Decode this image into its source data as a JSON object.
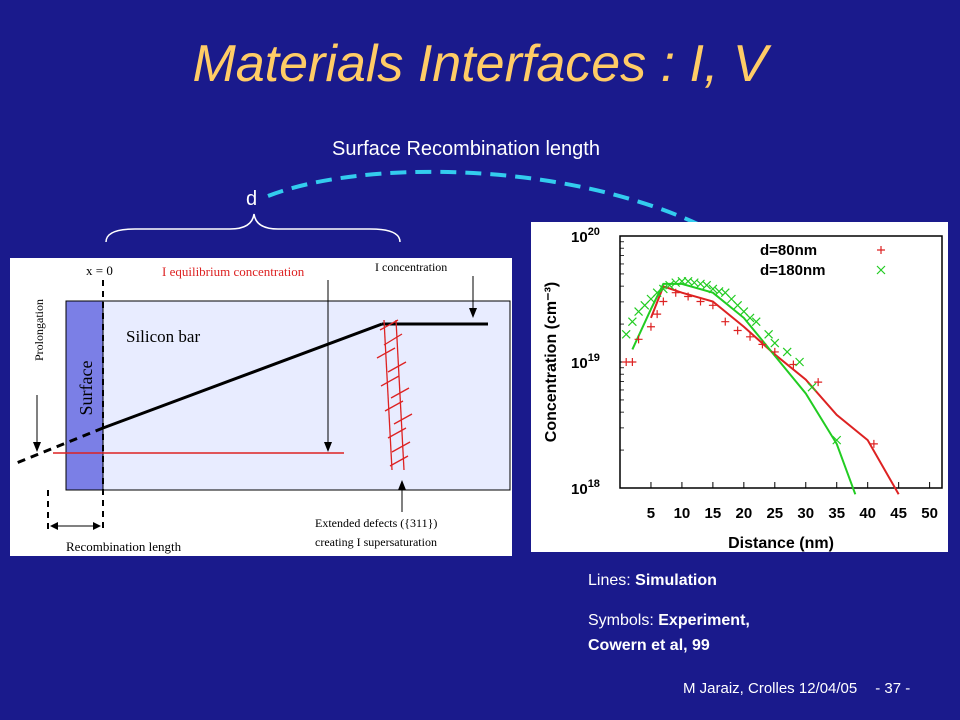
{
  "slide": {
    "title": "Materials Interfaces : I, V",
    "subtitle": "Surface Recombination length",
    "d_label": "d",
    "footer_author": "M Jaraiz, Crolles 12/04/05",
    "footer_page": "- 37 -"
  },
  "notes": {
    "lines_label": "Lines: ",
    "lines_value": "Simulation",
    "symbols_label": "Symbols: ",
    "symbols_value": "Experiment,",
    "symbols_value2": "Cowern et al, 99"
  },
  "schematic": {
    "x0_label": "x = 0",
    "equilibrium_label": "I equilibrium concentration",
    "concentration_label": "I concentration",
    "prolongation_label": "Prolongation",
    "surface_label": "Surface",
    "silicon_label": "Silicon bar",
    "defects_label1": "Extended defects ({311})",
    "defects_label2": "creating I supersaturation",
    "recombination_label": "Recombination length"
  },
  "chart_data": {
    "type": "line",
    "xlabel": "Distance (nm)",
    "ylabel": "Concentration (cm⁻³)",
    "x_ticks": [
      "5",
      "10",
      "15",
      "20",
      "25",
      "30",
      "35",
      "40",
      "45",
      "50"
    ],
    "y_ticks": [
      "10^18",
      "10^19",
      "10^20"
    ],
    "xlim": [
      0,
      52
    ],
    "ylim_log10": [
      18,
      20
    ],
    "legend": [
      {
        "name": "d=80nm",
        "marker": "+",
        "color": "#dd2222"
      },
      {
        "name": "d=180nm",
        "marker": "x",
        "color": "#22cc22"
      }
    ],
    "series": [
      {
        "name": "d=80nm",
        "style": "line",
        "color": "#dd2222",
        "x": [
          5,
          7,
          10,
          15,
          20,
          25,
          30,
          35,
          40,
          45
        ],
        "y": [
          19.35,
          19.6,
          19.55,
          19.48,
          19.28,
          19.06,
          18.86,
          18.58,
          18.38,
          17.95
        ]
      },
      {
        "name": "d=180nm",
        "style": "line",
        "color": "#22cc22",
        "x": [
          2,
          5,
          7,
          10,
          15,
          20,
          25,
          30,
          35,
          38
        ],
        "y": [
          19.1,
          19.42,
          19.62,
          19.62,
          19.55,
          19.35,
          19.05,
          18.75,
          18.35,
          17.95
        ]
      },
      {
        "name": "d=80nm",
        "style": "plus",
        "color": "#dd2222",
        "x": [
          1,
          2,
          3,
          5,
          6,
          7,
          9,
          11,
          13,
          15,
          17,
          19,
          21,
          23,
          25,
          28,
          32,
          41
        ],
        "y": [
          19.0,
          19.0,
          19.18,
          19.28,
          19.38,
          19.48,
          19.55,
          19.52,
          19.48,
          19.45,
          19.32,
          19.25,
          19.2,
          19.14,
          19.08,
          18.98,
          18.84,
          18.35
        ]
      },
      {
        "name": "d=180nm",
        "style": "x",
        "color": "#22cc22",
        "x": [
          1,
          2,
          3,
          4,
          5,
          6,
          7,
          8,
          9,
          10,
          11,
          12,
          13,
          14,
          15,
          16,
          17,
          18,
          19,
          20,
          21,
          22,
          24,
          25,
          27,
          29,
          31,
          35
        ],
        "y": [
          19.22,
          19.32,
          19.4,
          19.45,
          19.5,
          19.55,
          19.58,
          19.61,
          19.63,
          19.64,
          19.64,
          19.63,
          19.62,
          19.61,
          19.58,
          19.56,
          19.55,
          19.5,
          19.45,
          19.4,
          19.35,
          19.32,
          19.22,
          19.15,
          19.08,
          19.0,
          18.8,
          18.38
        ]
      }
    ]
  }
}
